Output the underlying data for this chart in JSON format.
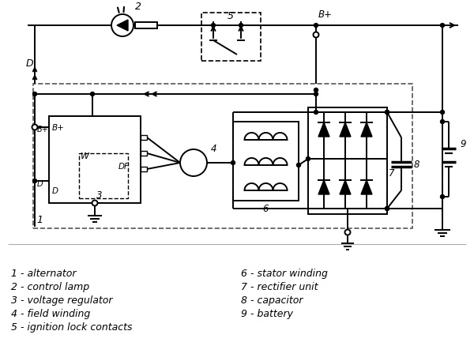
{
  "bg_color": "#ffffff",
  "line_color": "#000000",
  "legend_items_left": [
    "1 - alternator",
    "2 - control lamp",
    "3 - voltage regulator",
    "4 - field winding",
    "5 - ignition lock contacts"
  ],
  "legend_items_right": [
    "6 - stator winding",
    "7 - rectifier unit",
    "8 - capacitor",
    "9 - battery"
  ],
  "font_size_legend": 9.0
}
